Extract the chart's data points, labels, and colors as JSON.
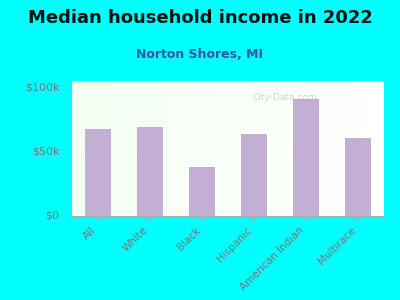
{
  "title": "Median household income in 2022",
  "subtitle": "Norton Shores, MI",
  "categories": [
    "All",
    "White",
    "Black",
    "Hispanic",
    "American Indian",
    "Multirace"
  ],
  "values": [
    68000,
    69000,
    38000,
    64000,
    91000,
    61000
  ],
  "bar_color": "#c4afd4",
  "background_outer": "#00FFFF",
  "title_color": "#111111",
  "subtitle_color": "#3355aa",
  "tick_label_color": "#777777",
  "ytick_labels": [
    "$0",
    "$50k",
    "$100k"
  ],
  "ytick_values": [
    0,
    50000,
    100000
  ],
  "ylim": [
    0,
    105000
  ],
  "figsize": [
    4.0,
    3.0
  ],
  "dpi": 100
}
